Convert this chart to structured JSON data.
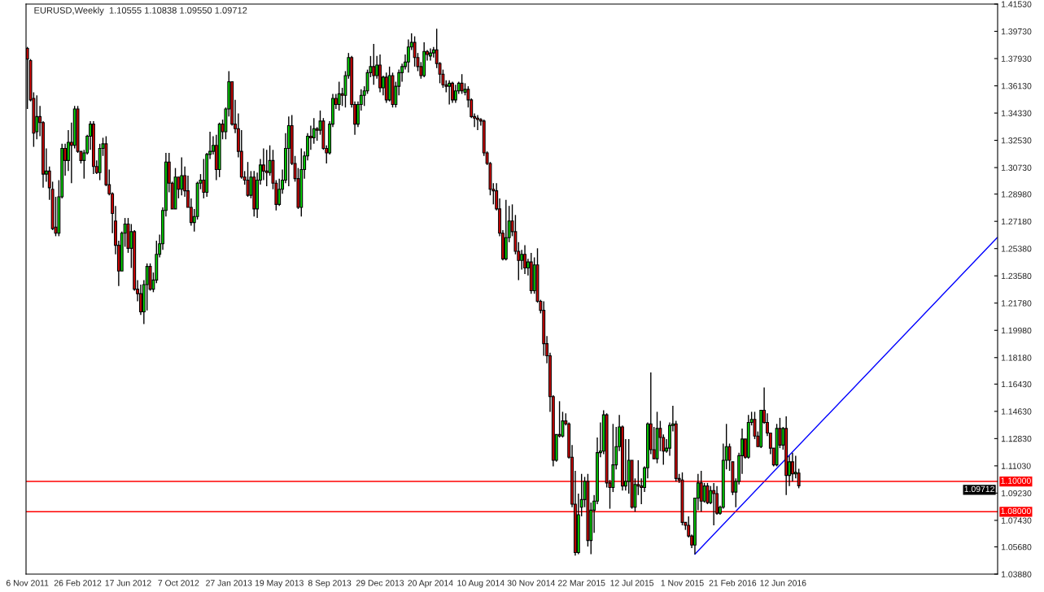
{
  "chart_data": {
    "type": "candlestick",
    "title": "EURUSD,Weekly  1.10555 1.10838 1.09550 1.09712",
    "color": "#000000",
    "x": [
      "2011-11-06",
      "2011-11-13",
      "2011-11-20",
      "2011-11-27",
      "2011-12-04",
      "2011-12-11",
      "2011-12-18",
      "2011-12-25",
      "2012-01-01",
      "2012-01-08",
      "2012-01-15",
      "2012-01-22",
      "2012-01-29",
      "2012-02-05",
      "2012-02-12",
      "2012-02-19",
      "2012-02-26",
      "2012-03-04",
      "2012-03-11",
      "2012-03-18",
      "2012-03-25",
      "2012-04-01",
      "2012-04-08",
      "2012-04-15",
      "2012-04-22",
      "2012-04-29",
      "2012-05-06",
      "2012-05-13",
      "2012-05-20",
      "2012-05-27",
      "2012-06-03",
      "2012-06-10",
      "2012-06-17",
      "2012-06-24",
      "2012-07-01",
      "2012-07-08",
      "2012-07-15",
      "2012-07-22",
      "2012-07-29",
      "2012-08-05",
      "2012-08-12",
      "2012-08-19",
      "2012-08-26",
      "2012-09-02",
      "2012-09-09",
      "2012-09-16",
      "2012-09-23",
      "2012-09-30",
      "2012-10-07",
      "2012-10-14",
      "2012-10-21",
      "2012-10-28",
      "2012-11-04",
      "2012-11-11",
      "2012-11-18",
      "2012-11-25",
      "2012-12-02",
      "2012-12-09",
      "2012-12-16",
      "2012-12-23",
      "2012-12-30",
      "2013-01-06",
      "2013-01-13",
      "2013-01-20",
      "2013-01-27",
      "2013-02-03",
      "2013-02-10",
      "2013-02-17",
      "2013-02-24",
      "2013-03-03",
      "2013-03-10",
      "2013-03-17",
      "2013-03-24",
      "2013-03-31",
      "2013-04-07",
      "2013-04-14",
      "2013-04-21",
      "2013-04-28",
      "2013-05-05",
      "2013-05-12",
      "2013-05-19",
      "2013-05-26",
      "2013-06-02",
      "2013-06-09",
      "2013-06-16",
      "2013-06-23",
      "2013-06-30",
      "2013-07-07",
      "2013-07-14",
      "2013-07-21",
      "2013-07-28",
      "2013-08-04",
      "2013-08-11",
      "2013-08-18",
      "2013-08-25",
      "2013-09-01",
      "2013-09-08",
      "2013-09-15",
      "2013-09-22",
      "2013-09-29",
      "2013-10-06",
      "2013-10-13",
      "2013-10-20",
      "2013-10-27",
      "2013-11-03",
      "2013-11-10",
      "2013-11-17",
      "2013-11-24",
      "2013-12-01",
      "2013-12-08",
      "2013-12-15",
      "2013-12-22",
      "2013-12-29",
      "2014-01-05",
      "2014-01-12",
      "2014-01-19",
      "2014-01-26",
      "2014-02-02",
      "2014-02-09",
      "2014-02-16",
      "2014-02-23",
      "2014-03-02",
      "2014-03-09",
      "2014-03-16",
      "2014-03-23",
      "2014-03-30",
      "2014-04-06",
      "2014-04-13",
      "2014-04-20",
      "2014-04-27",
      "2014-05-04",
      "2014-05-11",
      "2014-05-18",
      "2014-05-25",
      "2014-06-01",
      "2014-06-08",
      "2014-06-15",
      "2014-06-22",
      "2014-06-29",
      "2014-07-06",
      "2014-07-13",
      "2014-07-20",
      "2014-07-27",
      "2014-08-03",
      "2014-08-10",
      "2014-08-17",
      "2014-08-24",
      "2014-08-31",
      "2014-09-07",
      "2014-09-14",
      "2014-09-21",
      "2014-09-28",
      "2014-10-05",
      "2014-10-12",
      "2014-10-19",
      "2014-10-26",
      "2014-11-02",
      "2014-11-09",
      "2014-11-16",
      "2014-11-23",
      "2014-11-30",
      "2014-12-07",
      "2014-12-14",
      "2014-12-21",
      "2014-12-28",
      "2015-01-04",
      "2015-01-11",
      "2015-01-18",
      "2015-01-25",
      "2015-02-01",
      "2015-02-08",
      "2015-02-15",
      "2015-02-22",
      "2015-03-01",
      "2015-03-08",
      "2015-03-15",
      "2015-03-22",
      "2015-03-29",
      "2015-04-05",
      "2015-04-12",
      "2015-04-19",
      "2015-04-26",
      "2015-05-03",
      "2015-05-10",
      "2015-05-17",
      "2015-05-24",
      "2015-05-31",
      "2015-06-07",
      "2015-06-14",
      "2015-06-21",
      "2015-06-28",
      "2015-07-05",
      "2015-07-12",
      "2015-07-19",
      "2015-07-26",
      "2015-08-02",
      "2015-08-09",
      "2015-08-16",
      "2015-08-23",
      "2015-08-30",
      "2015-09-06",
      "2015-09-13",
      "2015-09-20",
      "2015-09-27",
      "2015-10-04",
      "2015-10-11",
      "2015-10-18",
      "2015-10-25",
      "2015-11-01",
      "2015-11-08",
      "2015-11-15",
      "2015-11-22",
      "2015-11-29",
      "2015-12-06",
      "2015-12-13",
      "2015-12-20",
      "2015-12-27",
      "2016-01-03",
      "2016-01-10",
      "2016-01-17",
      "2016-01-24",
      "2016-01-31",
      "2016-02-07",
      "2016-02-14",
      "2016-02-21",
      "2016-02-28",
      "2016-03-06",
      "2016-03-13",
      "2016-03-20",
      "2016-03-27",
      "2016-04-03",
      "2016-04-10",
      "2016-04-17",
      "2016-04-24",
      "2016-05-01",
      "2016-05-08",
      "2016-05-15",
      "2016-05-22",
      "2016-05-29",
      "2016-06-05",
      "2016-06-12",
      "2016-06-19",
      "2016-06-26",
      "2016-07-03",
      "2016-07-10",
      "2016-07-17"
    ],
    "ohlc": [
      [
        1.386,
        1.387,
        1.346,
        1.379
      ],
      [
        1.378,
        1.379,
        1.351,
        1.352
      ],
      [
        1.353,
        1.357,
        1.321,
        1.33
      ],
      [
        1.331,
        1.355,
        1.326,
        1.341
      ],
      [
        1.341,
        1.348,
        1.328,
        1.337
      ],
      [
        1.337,
        1.338,
        1.294,
        1.303
      ],
      [
        1.303,
        1.32,
        1.298,
        1.305
      ],
      [
        1.305,
        1.308,
        1.286,
        1.294
      ],
      [
        1.293,
        1.298,
        1.266,
        1.267
      ],
      [
        1.268,
        1.288,
        1.262,
        1.264
      ],
      [
        1.264,
        1.299,
        1.262,
        1.288
      ],
      [
        1.288,
        1.323,
        1.287,
        1.32
      ],
      [
        1.32,
        1.323,
        1.302,
        1.312
      ],
      [
        1.312,
        1.332,
        1.305,
        1.324
      ],
      [
        1.324,
        1.337,
        1.297,
        1.322
      ],
      [
        1.322,
        1.348,
        1.32,
        1.346
      ],
      [
        1.346,
        1.348,
        1.317,
        1.318
      ],
      [
        1.318,
        1.318,
        1.31,
        1.312
      ],
      [
        1.312,
        1.319,
        1.3,
        1.317
      ],
      [
        1.317,
        1.329,
        1.316,
        1.328
      ],
      [
        1.328,
        1.338,
        1.319,
        1.336
      ],
      [
        1.336,
        1.338,
        1.303,
        1.308
      ],
      [
        1.308,
        1.312,
        1.303,
        1.304
      ],
      [
        1.304,
        1.323,
        1.299,
        1.32
      ],
      [
        1.32,
        1.327,
        1.315,
        1.323
      ],
      [
        1.323,
        1.328,
        1.295,
        1.296
      ],
      [
        1.296,
        1.306,
        1.289,
        1.29
      ],
      [
        1.29,
        1.291,
        1.264,
        1.277
      ],
      [
        1.272,
        1.282,
        1.25,
        1.256
      ],
      [
        1.256,
        1.259,
        1.229,
        1.239
      ],
      [
        1.239,
        1.265,
        1.239,
        1.264
      ],
      [
        1.264,
        1.274,
        1.255,
        1.27
      ],
      [
        1.27,
        1.274,
        1.251,
        1.254
      ],
      [
        1.254,
        1.27,
        1.241,
        1.265
      ],
      [
        1.265,
        1.266,
        1.226,
        1.227
      ],
      [
        1.227,
        1.233,
        1.219,
        1.224
      ],
      [
        1.224,
        1.23,
        1.21,
        1.212
      ],
      [
        1.212,
        1.233,
        1.204,
        1.23
      ],
      [
        1.23,
        1.244,
        1.213,
        1.242
      ],
      [
        1.242,
        1.244,
        1.226,
        1.227
      ],
      [
        1.227,
        1.238,
        1.225,
        1.233
      ],
      [
        1.233,
        1.259,
        1.231,
        1.25
      ],
      [
        1.25,
        1.263,
        1.248,
        1.257
      ],
      [
        1.257,
        1.281,
        1.253,
        1.279
      ],
      [
        1.279,
        1.317,
        1.275,
        1.311
      ],
      [
        1.311,
        1.317,
        1.291,
        1.297
      ],
      [
        1.297,
        1.298,
        1.28,
        1.28
      ],
      [
        1.28,
        1.307,
        1.28,
        1.301
      ],
      [
        1.301,
        1.301,
        1.287,
        1.293
      ],
      [
        1.293,
        1.314,
        1.289,
        1.302
      ],
      [
        1.302,
        1.308,
        1.288,
        1.292
      ],
      [
        1.292,
        1.302,
        1.281,
        1.281
      ],
      [
        1.281,
        1.287,
        1.269,
        1.271
      ],
      [
        1.271,
        1.28,
        1.265,
        1.275
      ],
      [
        1.275,
        1.298,
        1.273,
        1.297
      ],
      [
        1.297,
        1.303,
        1.293,
        1.299
      ],
      [
        1.299,
        1.313,
        1.287,
        1.291
      ],
      [
        1.291,
        1.317,
        1.288,
        1.316
      ],
      [
        1.316,
        1.331,
        1.313,
        1.318
      ],
      [
        1.318,
        1.328,
        1.316,
        1.322
      ],
      [
        1.322,
        1.329,
        1.299,
        1.306
      ],
      [
        1.306,
        1.337,
        1.301,
        1.336
      ],
      [
        1.336,
        1.339,
        1.326,
        1.331
      ],
      [
        1.331,
        1.347,
        1.326,
        1.346
      ],
      [
        1.346,
        1.371,
        1.341,
        1.364
      ],
      [
        1.364,
        1.364,
        1.335,
        1.336
      ],
      [
        1.336,
        1.352,
        1.33,
        1.333
      ],
      [
        1.333,
        1.343,
        1.314,
        1.318
      ],
      [
        1.318,
        1.332,
        1.3,
        1.301
      ],
      [
        1.301,
        1.305,
        1.296,
        1.299
      ],
      [
        1.299,
        1.311,
        1.288,
        1.289
      ],
      [
        1.289,
        1.305,
        1.287,
        1.301
      ],
      [
        1.301,
        1.305,
        1.275,
        1.28
      ],
      [
        1.28,
        1.304,
        1.274,
        1.299
      ],
      [
        1.299,
        1.313,
        1.296,
        1.309
      ],
      [
        1.309,
        1.32,
        1.299,
        1.305
      ],
      [
        1.305,
        1.319,
        1.295,
        1.304
      ],
      [
        1.304,
        1.322,
        1.302,
        1.312
      ],
      [
        1.312,
        1.319,
        1.293,
        1.297
      ],
      [
        1.297,
        1.299,
        1.279,
        1.283
      ],
      [
        1.283,
        1.3,
        1.282,
        1.293
      ],
      [
        1.293,
        1.306,
        1.29,
        1.299
      ],
      [
        1.299,
        1.33,
        1.297,
        1.32
      ],
      [
        1.32,
        1.341,
        1.295,
        1.335
      ],
      [
        1.335,
        1.342,
        1.309,
        1.31
      ],
      [
        1.31,
        1.315,
        1.298,
        1.3
      ],
      [
        1.3,
        1.307,
        1.28,
        1.281
      ],
      [
        1.281,
        1.32,
        1.275,
        1.306
      ],
      [
        1.306,
        1.318,
        1.3,
        1.315
      ],
      [
        1.315,
        1.33,
        1.312,
        1.328
      ],
      [
        1.328,
        1.335,
        1.319,
        1.327
      ],
      [
        1.327,
        1.34,
        1.323,
        1.333
      ],
      [
        1.333,
        1.334,
        1.325,
        1.332
      ],
      [
        1.332,
        1.345,
        1.329,
        1.338
      ],
      [
        1.338,
        1.34,
        1.319,
        1.32
      ],
      [
        1.32,
        1.322,
        1.31,
        1.317
      ],
      [
        1.317,
        1.338,
        1.316,
        1.336
      ],
      [
        1.336,
        1.356,
        1.334,
        1.353
      ],
      [
        1.353,
        1.356,
        1.346,
        1.349
      ],
      [
        1.349,
        1.364,
        1.345,
        1.356
      ],
      [
        1.356,
        1.36,
        1.348,
        1.355
      ],
      [
        1.355,
        1.371,
        1.347,
        1.368
      ],
      [
        1.368,
        1.383,
        1.366,
        1.38
      ],
      [
        1.38,
        1.381,
        1.347,
        1.349
      ],
      [
        1.349,
        1.351,
        1.329,
        1.336
      ],
      [
        1.336,
        1.351,
        1.334,
        1.349
      ],
      [
        1.349,
        1.359,
        1.345,
        1.355
      ],
      [
        1.355,
        1.361,
        1.348,
        1.358
      ],
      [
        1.358,
        1.372,
        1.356,
        1.37
      ],
      [
        1.37,
        1.381,
        1.367,
        1.374
      ],
      [
        1.374,
        1.389,
        1.362,
        1.368
      ],
      [
        1.368,
        1.381,
        1.366,
        1.375
      ],
      [
        1.375,
        1.382,
        1.357,
        1.36
      ],
      [
        1.36,
        1.368,
        1.355,
        1.367
      ],
      [
        1.367,
        1.37,
        1.35,
        1.352
      ],
      [
        1.352,
        1.374,
        1.351,
        1.368
      ],
      [
        1.368,
        1.37,
        1.347,
        1.349
      ],
      [
        1.349,
        1.364,
        1.347,
        1.361
      ],
      [
        1.361,
        1.372,
        1.355,
        1.37
      ],
      [
        1.37,
        1.376,
        1.364,
        1.374
      ],
      [
        1.374,
        1.382,
        1.372,
        1.377
      ],
      [
        1.377,
        1.392,
        1.37,
        1.387
      ],
      [
        1.387,
        1.396,
        1.385,
        1.39
      ],
      [
        1.39,
        1.394,
        1.374,
        1.38
      ],
      [
        1.38,
        1.383,
        1.371,
        1.374
      ],
      [
        1.374,
        1.377,
        1.366,
        1.368
      ],
      [
        1.368,
        1.39,
        1.367,
        1.384
      ],
      [
        1.384,
        1.385,
        1.378,
        1.382
      ],
      [
        1.381,
        1.386,
        1.378,
        1.383
      ],
      [
        1.383,
        1.387,
        1.38,
        1.385
      ],
      [
        1.385,
        1.399,
        1.373,
        1.376
      ],
      [
        1.376,
        1.377,
        1.363,
        1.369
      ],
      [
        1.369,
        1.372,
        1.36,
        1.362
      ],
      [
        1.362,
        1.365,
        1.357,
        1.361
      ],
      [
        1.361,
        1.365,
        1.349,
        1.363
      ],
      [
        1.363,
        1.364,
        1.35,
        1.352
      ],
      [
        1.352,
        1.362,
        1.35,
        1.358
      ],
      [
        1.358,
        1.364,
        1.356,
        1.363
      ],
      [
        1.363,
        1.369,
        1.356,
        1.358
      ],
      [
        1.357,
        1.363,
        1.355,
        1.359
      ],
      [
        1.359,
        1.361,
        1.347,
        1.352
      ],
      [
        1.352,
        1.353,
        1.34,
        1.341
      ],
      [
        1.341,
        1.343,
        1.334,
        1.34
      ],
      [
        1.34,
        1.342,
        1.332,
        1.339
      ],
      [
        1.339,
        1.34,
        1.335,
        1.338
      ],
      [
        1.338,
        1.339,
        1.315,
        1.317
      ],
      [
        1.317,
        1.318,
        1.309,
        1.31
      ],
      [
        1.31,
        1.311,
        1.289,
        1.293
      ],
      [
        1.293,
        1.297,
        1.283,
        1.292
      ],
      [
        1.292,
        1.297,
        1.279,
        1.28
      ],
      [
        1.28,
        1.287,
        1.262,
        1.264
      ],
      [
        1.264,
        1.266,
        1.246,
        1.247
      ],
      [
        1.247,
        1.286,
        1.246,
        1.261
      ],
      [
        1.261,
        1.282,
        1.258,
        1.272
      ],
      [
        1.272,
        1.283,
        1.262,
        1.265
      ],
      [
        1.265,
        1.276,
        1.25,
        1.252
      ],
      [
        1.252,
        1.258,
        1.233,
        1.246
      ],
      [
        1.246,
        1.253,
        1.24,
        1.25
      ],
      [
        1.25,
        1.256,
        1.237,
        1.241
      ],
      [
        1.241,
        1.247,
        1.236,
        1.245
      ],
      [
        1.245,
        1.251,
        1.224,
        1.226
      ],
      [
        1.226,
        1.248,
        1.224,
        1.243
      ],
      [
        1.243,
        1.254,
        1.218,
        1.219
      ],
      [
        1.219,
        1.22,
        1.211,
        1.213
      ],
      [
        1.213,
        1.219,
        1.183,
        1.191
      ],
      [
        1.191,
        1.196,
        1.178,
        1.183
      ],
      [
        1.183,
        1.185,
        1.146,
        1.156
      ],
      [
        1.156,
        1.157,
        1.11,
        1.114
      ],
      [
        1.114,
        1.131,
        1.113,
        1.131
      ],
      [
        1.131,
        1.153,
        1.129,
        1.13
      ],
      [
        1.13,
        1.146,
        1.129,
        1.14
      ],
      [
        1.14,
        1.145,
        1.137,
        1.138
      ],
      [
        1.138,
        1.139,
        1.115,
        1.116
      ],
      [
        1.116,
        1.124,
        1.083,
        1.085
      ],
      [
        1.085,
        1.107,
        1.051,
        1.053
      ],
      [
        1.053,
        1.092,
        1.052,
        1.078
      ],
      [
        1.083,
        1.105,
        1.077,
        1.088
      ],
      [
        1.088,
        1.103,
        1.083,
        1.1
      ],
      [
        1.1,
        1.105,
        1.057,
        1.061
      ],
      [
        1.061,
        1.086,
        1.052,
        1.081
      ],
      [
        1.081,
        1.091,
        1.066,
        1.087
      ],
      [
        1.087,
        1.129,
        1.085,
        1.119
      ],
      [
        1.119,
        1.139,
        1.116,
        1.12
      ],
      [
        1.12,
        1.147,
        1.118,
        1.144
      ],
      [
        1.144,
        1.145,
        1.096,
        1.099
      ],
      [
        1.099,
        1.101,
        1.082,
        1.096
      ],
      [
        1.096,
        1.138,
        1.093,
        1.111
      ],
      [
        1.111,
        1.136,
        1.108,
        1.123
      ],
      [
        1.123,
        1.144,
        1.12,
        1.136
      ],
      [
        1.136,
        1.137,
        1.094,
        1.097
      ],
      [
        1.097,
        1.128,
        1.094,
        1.1
      ],
      [
        1.1,
        1.128,
        1.092,
        1.114
      ],
      [
        1.114,
        1.114,
        1.082,
        1.083
      ],
      [
        1.083,
        1.102,
        1.08,
        1.098
      ],
      [
        1.098,
        1.114,
        1.091,
        1.097
      ],
      [
        1.097,
        1.102,
        1.085,
        1.096
      ],
      [
        1.096,
        1.11,
        1.093,
        1.109
      ],
      [
        1.109,
        1.139,
        1.102,
        1.138
      ],
      [
        1.138,
        1.172,
        1.118,
        1.121
      ],
      [
        1.121,
        1.136,
        1.115,
        1.115
      ],
      [
        1.115,
        1.146,
        1.112,
        1.135
      ],
      [
        1.135,
        1.14,
        1.12,
        1.129
      ],
      [
        1.129,
        1.131,
        1.111,
        1.12
      ],
      [
        1.12,
        1.128,
        1.119,
        1.122
      ],
      [
        1.122,
        1.139,
        1.117,
        1.137
      ],
      [
        1.137,
        1.15,
        1.133,
        1.138
      ],
      [
        1.138,
        1.14,
        1.1,
        1.102
      ],
      [
        1.102,
        1.105,
        1.099,
        1.101
      ],
      [
        1.101,
        1.106,
        1.071,
        1.073
      ],
      [
        1.073,
        1.073,
        1.068,
        1.071
      ],
      [
        1.071,
        1.077,
        1.063,
        1.064
      ],
      [
        1.064,
        1.065,
        1.056,
        1.058
      ],
      [
        1.058,
        1.089,
        1.052,
        1.089
      ],
      [
        1.089,
        1.105,
        1.081,
        1.099
      ],
      [
        1.099,
        1.107,
        1.08,
        1.087
      ],
      [
        1.087,
        1.099,
        1.086,
        1.097
      ],
      [
        1.097,
        1.099,
        1.085,
        1.086
      ],
      [
        1.086,
        1.097,
        1.085,
        1.094
      ],
      [
        1.094,
        1.099,
        1.071,
        1.092
      ],
      [
        1.092,
        1.097,
        1.078,
        1.079
      ],
      [
        1.079,
        1.084,
        1.078,
        1.083
      ],
      [
        1.083,
        1.125,
        1.082,
        1.114
      ],
      [
        1.114,
        1.138,
        1.108,
        1.123
      ],
      [
        1.123,
        1.125,
        1.107,
        1.114
      ],
      [
        1.113,
        1.113,
        1.091,
        1.093
      ],
      [
        1.093,
        1.102,
        1.083,
        1.1
      ],
      [
        1.1,
        1.119,
        1.098,
        1.117
      ],
      [
        1.117,
        1.135,
        1.105,
        1.128
      ],
      [
        1.128,
        1.128,
        1.115,
        1.116
      ],
      [
        1.116,
        1.144,
        1.115,
        1.139
      ],
      [
        1.139,
        1.146,
        1.137,
        1.141
      ],
      [
        1.141,
        1.146,
        1.128,
        1.13
      ],
      [
        1.13,
        1.133,
        1.123,
        1.123
      ],
      [
        1.123,
        1.147,
        1.122,
        1.147
      ],
      [
        1.147,
        1.162,
        1.138,
        1.139
      ],
      [
        1.139,
        1.145,
        1.13,
        1.132
      ],
      [
        1.132,
        1.132,
        1.118,
        1.122
      ],
      [
        1.122,
        1.122,
        1.11,
        1.111
      ],
      [
        1.111,
        1.138,
        1.11,
        1.135
      ],
      [
        1.135,
        1.142,
        1.122,
        1.124
      ],
      [
        1.124,
        1.136,
        1.121,
        1.135
      ],
      [
        1.135,
        1.143,
        1.091,
        1.104
      ],
      [
        1.104,
        1.117,
        1.097,
        1.113
      ],
      [
        1.113,
        1.119,
        1.1,
        1.105
      ],
      [
        1.105,
        1.117,
        1.102,
        1.106
      ],
      [
        1.10555,
        1.10838,
        1.0955,
        1.09712
      ]
    ],
    "colors": [
      "#e00000",
      "#e00000",
      "#e00000",
      "#00e000",
      "#e00000",
      "#e00000",
      "#00e000",
      "#e00000",
      "#e00000",
      "#e00000",
      "#00e000",
      "#00e000",
      "#e00000",
      "#00e000",
      "#e00000",
      "#00e000",
      "#e00000",
      "#e00000",
      "#00e000",
      "#00e000",
      "#00e000",
      "#e00000",
      "#e00000",
      "#00e000",
      "#00e000",
      "#e00000",
      "#e00000",
      "#e00000",
      "#e00000",
      "#e00000",
      "#00e000",
      "#00e000",
      "#e00000",
      "#00e000",
      "#e00000",
      "#e00000",
      "#e00000",
      "#00e000",
      "#00e000",
      "#e00000",
      "#00e000",
      "#00e000",
      "#00e000",
      "#00e000",
      "#00e000",
      "#e00000",
      "#e00000",
      "#00e000",
      "#e00000",
      "#00e000",
      "#e00000",
      "#e00000",
      "#e00000",
      "#00e000",
      "#00e000",
      "#00e000",
      "#e00000",
      "#00e000",
      "#00e000",
      "#00e000",
      "#e00000",
      "#00e000",
      "#e00000",
      "#00e000",
      "#00e000",
      "#e00000",
      "#e00000",
      "#e00000",
      "#e00000",
      "#e00000",
      "#e00000",
      "#00e000",
      "#e00000",
      "#00e000",
      "#00e000",
      "#e00000",
      "#e00000",
      "#00e000",
      "#e00000",
      "#e00000",
      "#00e000",
      "#00e000",
      "#00e000",
      "#00e000",
      "#e00000",
      "#e00000",
      "#e00000",
      "#00e000",
      "#00e000",
      "#00e000",
      "#e00000",
      "#00e000",
      "#e00000",
      "#00e000",
      "#e00000",
      "#e00000",
      "#00e000",
      "#00e000",
      "#e00000",
      "#00e000",
      "#e00000",
      "#00e000",
      "#00e000",
      "#e00000",
      "#e00000",
      "#00e000",
      "#00e000",
      "#00e000",
      "#00e000",
      "#00e000",
      "#e00000",
      "#00e000",
      "#e00000",
      "#00e000",
      "#e00000",
      "#00e000",
      "#e00000",
      "#00e000",
      "#00e000",
      "#00e000",
      "#00e000",
      "#00e000",
      "#00e000",
      "#e00000",
      "#e00000",
      "#e00000",
      "#00e000",
      "#e00000",
      "#00e000",
      "#00e000",
      "#e00000",
      "#e00000",
      "#e00000",
      "#e00000",
      "#00e000",
      "#e00000",
      "#00e000",
      "#00e000",
      "#e00000",
      "#00e000",
      "#e00000",
      "#e00000",
      "#e00000",
      "#e00000",
      "#e00000",
      "#e00000",
      "#e00000",
      "#e00000",
      "#e00000",
      "#e00000",
      "#e00000",
      "#e00000",
      "#00e000",
      "#00e000",
      "#e00000",
      "#e00000",
      "#e00000",
      "#00e000",
      "#e00000",
      "#00e000",
      "#e00000",
      "#00e000",
      "#e00000",
      "#e00000",
      "#e00000",
      "#e00000",
      "#e00000",
      "#e00000",
      "#00e000",
      "#e00000",
      "#00e000",
      "#e00000",
      "#e00000",
      "#e00000",
      "#e00000",
      "#00e000",
      "#00e000",
      "#00e000",
      "#e00000",
      "#00e000",
      "#00e000",
      "#00e000",
      "#00e000",
      "#00e000",
      "#e00000",
      "#e00000",
      "#00e000",
      "#00e000",
      "#00e000",
      "#e00000",
      "#00e000",
      "#00e000",
      "#e00000",
      "#00e000",
      "#e00000",
      "#e00000",
      "#00e000",
      "#00e000",
      "#e00000",
      "#e00000",
      "#00e000",
      "#e00000",
      "#e00000",
      "#00e000",
      "#00e000",
      "#00e000",
      "#e00000",
      "#e00000",
      "#e00000",
      "#e00000",
      "#e00000",
      "#e00000",
      "#00e000",
      "#00e000",
      "#e00000",
      "#00e000",
      "#e00000",
      "#00e000",
      "#e00000",
      "#e00000",
      "#00e000",
      "#00e000",
      "#00e000",
      "#e00000",
      "#e00000",
      "#00e000",
      "#00e000",
      "#00e000",
      "#e00000",
      "#00e000",
      "#00e000",
      "#e00000",
      "#e00000",
      "#00e000",
      "#e00000",
      "#e00000",
      "#e00000",
      "#e00000",
      "#00e000",
      "#e00000",
      "#00e000",
      "#e00000",
      "#00e000",
      "#e00000",
      "#00e000",
      "#e00000"
    ],
    "series": [
      {
        "type": "line",
        "x": [
          "2015-11-29",
          "2017-10-01"
        ],
        "values": [
          1.052,
          1.261
        ],
        "color": "#0000ff"
      }
    ],
    "ref_lines": [
      {
        "axis": "y",
        "value": 1.1,
        "label": "1.10000",
        "color": "#ff0000"
      },
      {
        "axis": "y",
        "value": 1.08,
        "label": "1.08000",
        "color": "#ff0000"
      }
    ],
    "annotations": [
      "1.09712"
    ],
    "xlim": [
      "2011-11-03",
      "2017-10-02"
    ],
    "xticks": [
      {
        "value": "2011-11-06",
        "label": "6 Nov 2011"
      },
      {
        "value": "2012-02-26",
        "label": "26 Feb 2012"
      },
      {
        "value": "2012-06-17",
        "label": "17 Jun 2012"
      },
      {
        "value": "2012-10-07",
        "label": "7 Oct 2012"
      },
      {
        "value": "2013-01-27",
        "label": "27 Jan 2013"
      },
      {
        "value": "2013-05-19",
        "label": "19 May 2013"
      },
      {
        "value": "2013-09-08",
        "label": "8 Sep 2013"
      },
      {
        "value": "2013-12-29",
        "label": "29 Dec 2013"
      },
      {
        "value": "2014-04-20",
        "label": "20 Apr 2014"
      },
      {
        "value": "2014-08-10",
        "label": "10 Aug 2014"
      },
      {
        "value": "2014-11-30",
        "label": "30 Nov 2014"
      },
      {
        "value": "2015-03-22",
        "label": "22 Mar 2015"
      },
      {
        "value": "2015-07-12",
        "label": "12 Jul 2015"
      },
      {
        "value": "2015-11-01",
        "label": "1 Nov 2015"
      },
      {
        "value": "2016-02-21",
        "label": "21 Feb 2016"
      },
      {
        "value": "2016-06-12",
        "label": "12 Jun 2016"
      }
    ],
    "ylim": [
      1.0388,
      1.4153
    ],
    "yticks": [
      {
        "value": 1.0388,
        "label": "1.03880"
      },
      {
        "value": 1.0568,
        "label": "1.05680"
      },
      {
        "value": 1.0743,
        "label": "1.07430"
      },
      {
        "value": 1.0923,
        "label": "1.09230"
      },
      {
        "value": 1.1103,
        "label": "1.11030"
      },
      {
        "value": 1.1283,
        "label": "1.12830"
      },
      {
        "value": 1.1463,
        "label": "1.14630"
      },
      {
        "value": 1.1643,
        "label": "1.16430"
      },
      {
        "value": 1.1818,
        "label": "1.18180"
      },
      {
        "value": 1.1998,
        "label": "1.19980"
      },
      {
        "value": 1.2178,
        "label": "1.21780"
      },
      {
        "value": 1.2358,
        "label": "1.23580"
      },
      {
        "value": 1.2538,
        "label": "1.25380"
      },
      {
        "value": 1.2718,
        "label": "1.27180"
      },
      {
        "value": 1.2898,
        "label": "1.28980"
      },
      {
        "value": 1.3073,
        "label": "1.30730"
      },
      {
        "value": 1.3253,
        "label": "1.32530"
      },
      {
        "value": 1.3433,
        "label": "1.34330"
      },
      {
        "value": 1.3613,
        "label": "1.36130"
      },
      {
        "value": 1.3793,
        "label": "1.37930"
      },
      {
        "value": 1.3973,
        "label": "1.39730"
      },
      {
        "value": 1.4153,
        "label": "1.41530"
      }
    ]
  }
}
